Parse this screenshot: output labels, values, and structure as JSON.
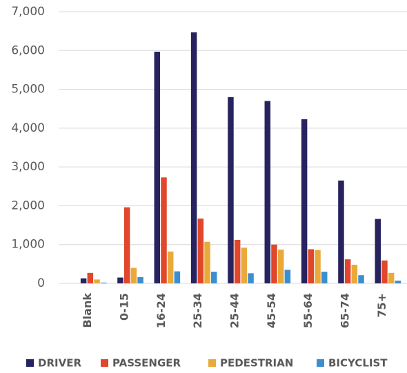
{
  "chart_data": {
    "type": "bar",
    "categories": [
      "Blank",
      "0-15",
      "16-24",
      "25-34",
      "25-44",
      "45-54",
      "55-64",
      "65-74",
      "75+"
    ],
    "series": [
      {
        "name": "DRIVER",
        "color": "#27235f",
        "values": [
          130,
          150,
          5970,
          6470,
          4800,
          4700,
          4230,
          2650,
          1660
        ]
      },
      {
        "name": "PASSENGER",
        "color": "#e0472b",
        "values": [
          270,
          1960,
          2730,
          1670,
          1120,
          1000,
          880,
          620,
          590
        ]
      },
      {
        "name": "PEDESTRIAN",
        "color": "#e9aa3b",
        "values": [
          100,
          400,
          820,
          1070,
          920,
          870,
          860,
          480,
          270
        ]
      },
      {
        "name": "BICYCLIST",
        "color": "#3b8fd0",
        "values": [
          20,
          160,
          310,
          300,
          260,
          350,
          300,
          210,
          70
        ]
      }
    ],
    "ylim": [
      0,
      7000
    ],
    "yticks": [
      0,
      {
        "value": 1000,
        "label": "1,000"
      },
      {
        "value": 2000,
        "label": "2,000"
      },
      {
        "value": 3000,
        "label": "3,000"
      },
      {
        "value": 4000,
        "label": "4,000"
      },
      {
        "value": 5000,
        "label": "5,000"
      },
      {
        "value": 6000,
        "label": "6,000"
      },
      {
        "value": 7000,
        "label": "7,000"
      }
    ],
    "grid": true,
    "legend": "bottom"
  }
}
